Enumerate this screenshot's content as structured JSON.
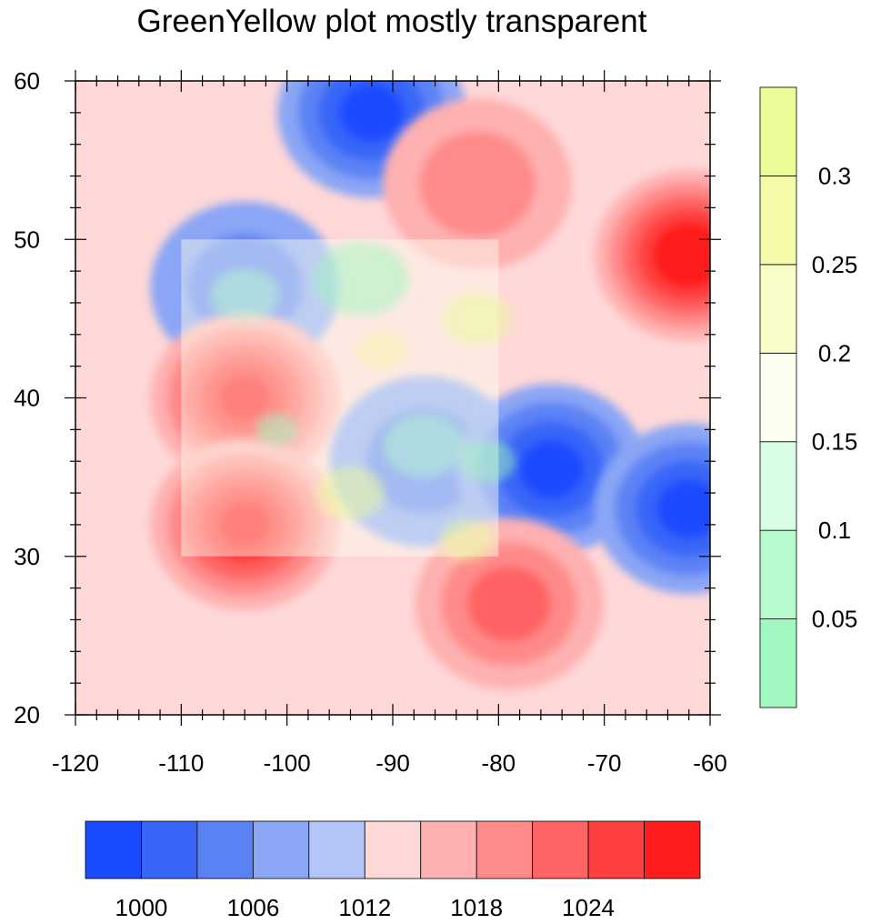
{
  "chart_data": {
    "type": "heatmap",
    "title": "GreenYellow plot mostly transparent",
    "x_ticks": [
      "-120",
      "-110",
      "-100",
      "-90",
      "-80",
      "-70",
      "-60"
    ],
    "y_ticks": [
      "60",
      "50",
      "40",
      "30",
      "20"
    ],
    "xlim": [
      -120,
      -60
    ],
    "ylim": [
      20,
      60
    ],
    "grid": false,
    "pressure_field": {
      "units_levels": [
        1000,
        1003,
        1006,
        1009,
        1012,
        1015,
        1018,
        1021,
        1024,
        1027
      ],
      "background": 1012,
      "systems": [
        {
          "x": -92,
          "y": 58,
          "value": 998,
          "kind": "low"
        },
        {
          "x": -82,
          "y": 53.5,
          "value": 1020,
          "kind": "high"
        },
        {
          "x": -62,
          "y": 49,
          "value": 1030,
          "kind": "high"
        },
        {
          "x": -104,
          "y": 47,
          "value": 1006,
          "kind": "low"
        },
        {
          "x": -104,
          "y": 40,
          "value": 1027,
          "kind": "high"
        },
        {
          "x": -104,
          "y": 32,
          "value": 1029,
          "kind": "high"
        },
        {
          "x": -87,
          "y": 36,
          "value": 1004,
          "kind": "low"
        },
        {
          "x": -75,
          "y": 35.5,
          "value": 999,
          "kind": "low"
        },
        {
          "x": -62,
          "y": 33,
          "value": 999,
          "kind": "low"
        },
        {
          "x": -79,
          "y": 27,
          "value": 1021,
          "kind": "high"
        }
      ]
    },
    "bottom_colorbar": {
      "colors": [
        "#1a4cff",
        "#3866f7",
        "#5b82f5",
        "#8aa6f5",
        "#b3c5f7",
        "#ffd8d8",
        "#ffb0b0",
        "#ff8a8a",
        "#ff6464",
        "#ff4040",
        "#ff1e1e"
      ],
      "labels": [
        "1000",
        "1006",
        "1012",
        "1018",
        "1024"
      ]
    },
    "overlay_field": {
      "region": {
        "x": [
          -110,
          -80
        ],
        "y": [
          30,
          50
        ]
      },
      "opacity": "mostly transparent",
      "levels": [
        0.05,
        0.1,
        0.15,
        0.2,
        0.25,
        0.3
      ]
    },
    "right_colorbar": {
      "colors": [
        "#a0f8c0",
        "#b8fad0",
        "#d8fce4",
        "#fcfef0",
        "#fafcc8",
        "#f4faa8",
        "#ecfc98"
      ],
      "labels": [
        "0.05",
        "0.1",
        "0.15",
        "0.2",
        "0.25",
        "0.3"
      ]
    }
  }
}
